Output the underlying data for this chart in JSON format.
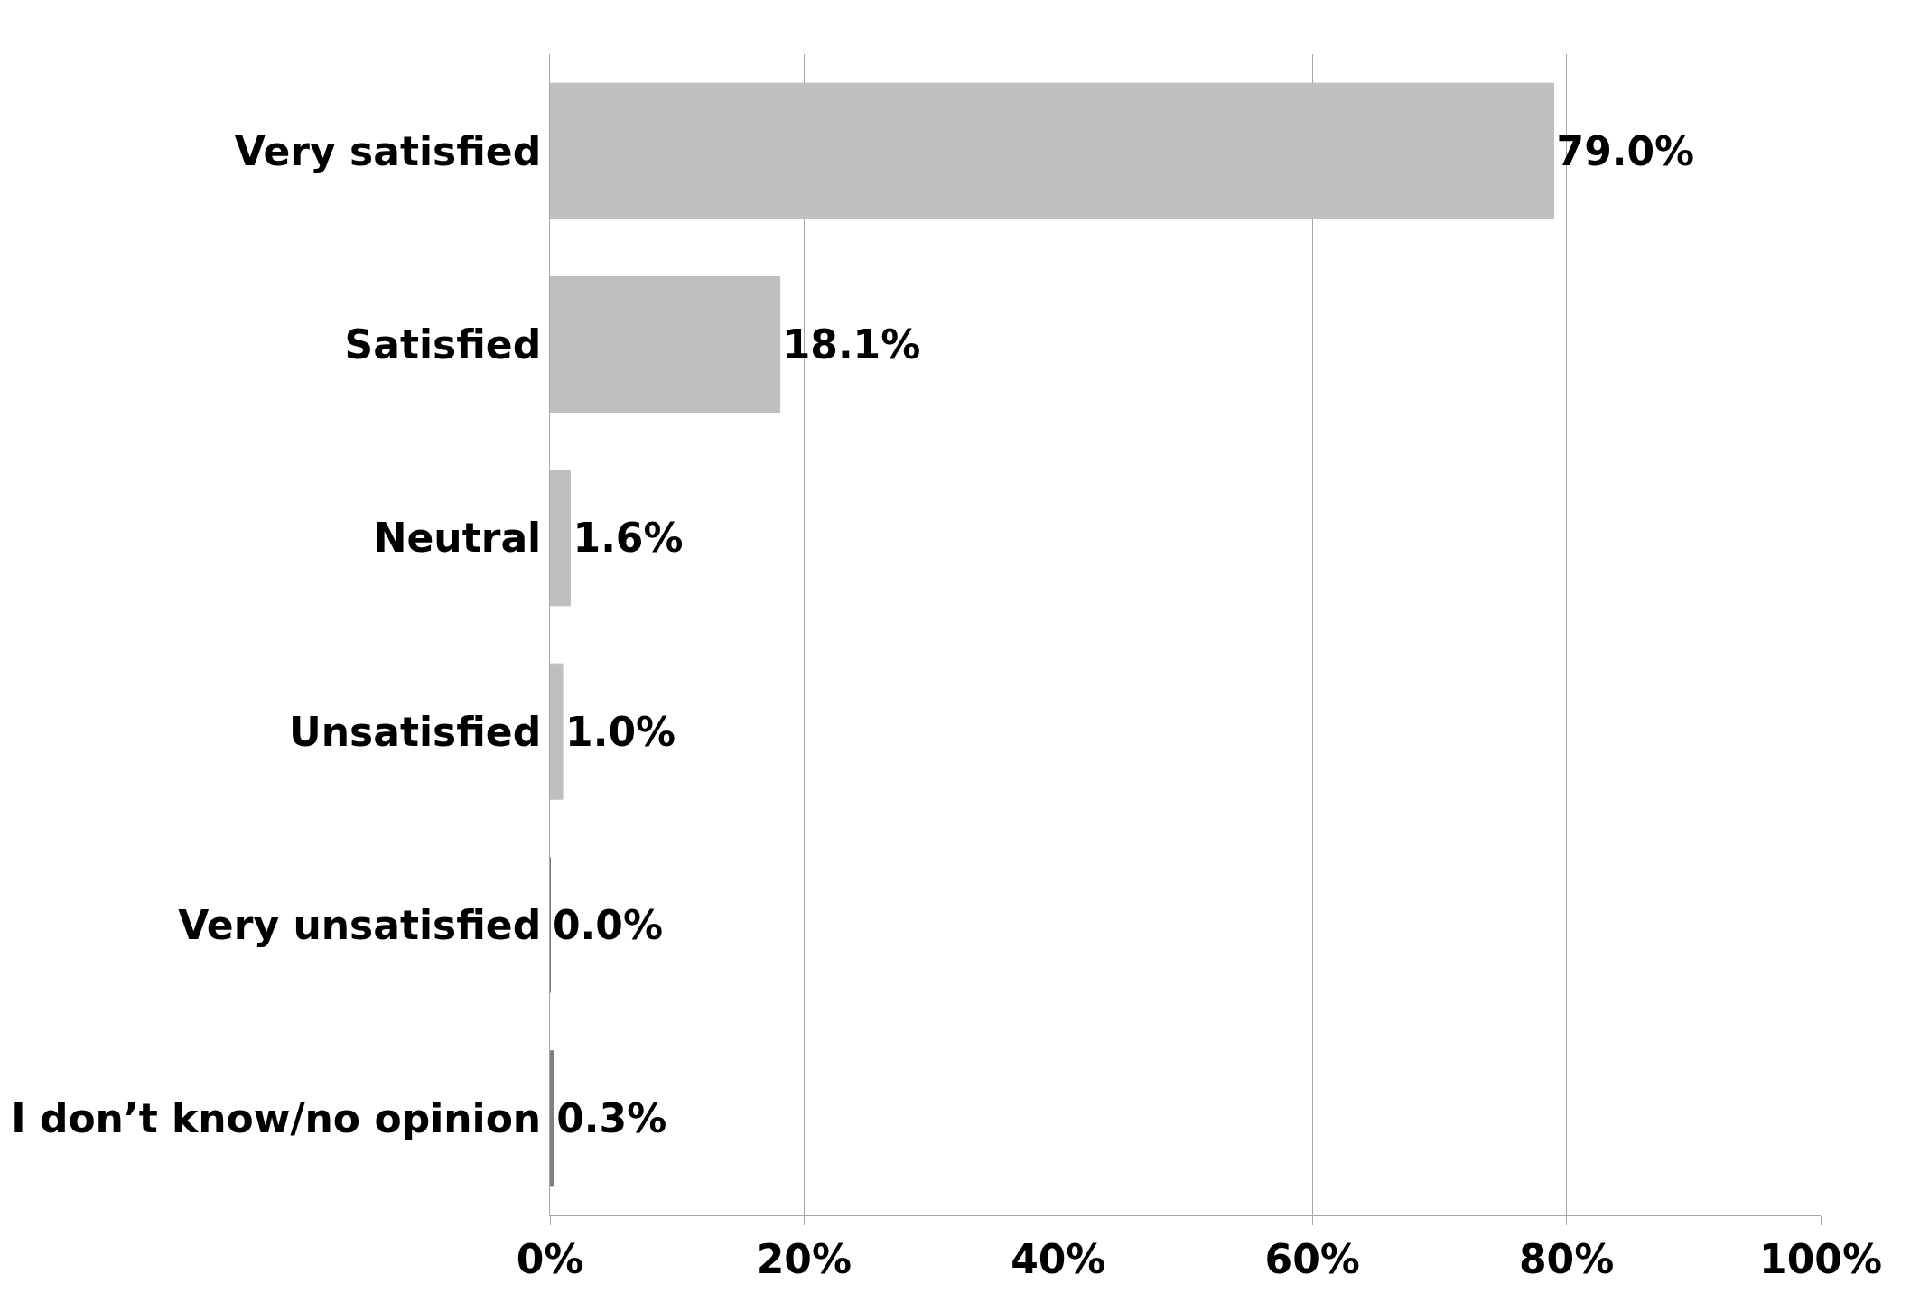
{
  "chart_data": {
    "type": "bar",
    "orientation": "horizontal",
    "categories": [
      "Very satisfied",
      "Satisfied",
      "Neutral",
      "Unsatisfied",
      "Very unsatisfied",
      "I don’t know/no opinion"
    ],
    "values": [
      79.0,
      18.1,
      1.6,
      1.0,
      0.0,
      0.3
    ],
    "colors": [
      "#bfbfbf",
      "#bfbfbf",
      "#bfbfbf",
      "#bfbfbf",
      "#4d4d4d",
      "#808080"
    ],
    "value_labels": [
      "79.0%",
      "18.1%",
      "1.6%",
      "1.0%",
      "0.0%",
      "0.3%"
    ],
    "xlim": [
      0,
      100
    ],
    "xticks": [
      {
        "value": 0,
        "label": "0%"
      },
      {
        "value": 20,
        "label": "20%"
      },
      {
        "value": 40,
        "label": "40%"
      },
      {
        "value": 60,
        "label": "60%"
      },
      {
        "value": 80,
        "label": "80%"
      },
      {
        "value": 100,
        "label": "100%"
      }
    ],
    "grid": "x"
  }
}
